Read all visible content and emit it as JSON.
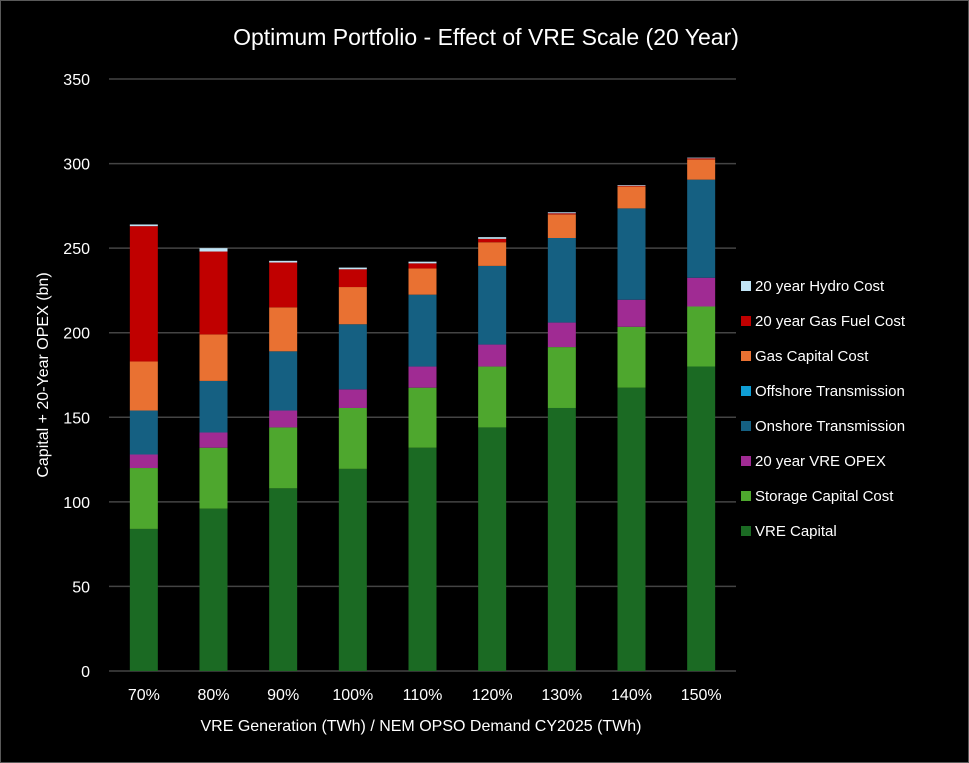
{
  "chart_data": {
    "type": "bar",
    "stacked": true,
    "title": "Optimum Portfolio - Effect of VRE Scale (20 Year)",
    "xlabel": "VRE Generation (TWh) / NEM OPSO Demand CY2025 (TWh)",
    "ylabel": "Capital + 20-Year OPEX (bn)",
    "ylim": [
      0,
      350
    ],
    "yticks": [
      0,
      50,
      100,
      150,
      200,
      250,
      300,
      350
    ],
    "grid": true,
    "legend_position": "right",
    "categories": [
      "70%",
      "80%",
      "90%",
      "100%",
      "110%",
      "120%",
      "130%",
      "140%",
      "150%"
    ],
    "series": [
      {
        "name": "VRE Capital",
        "color": "#1b6a23",
        "values": [
          84,
          96,
          108,
          119.5,
          132,
          144,
          155.5,
          167.5,
          180
        ]
      },
      {
        "name": "Storage Capital Cost",
        "color": "#4ea72e",
        "values": [
          36,
          36,
          36,
          36,
          35.5,
          36,
          36,
          36,
          35.5
        ]
      },
      {
        "name": "20 year VRE OPEX",
        "color": "#a02b93",
        "values": [
          8,
          9,
          10,
          11,
          12.5,
          13,
          14.5,
          16,
          17
        ]
      },
      {
        "name": "Onshore Transmission",
        "color": "#156082",
        "values": [
          26,
          30.5,
          35,
          38.5,
          42.5,
          46.5,
          50,
          54,
          58
        ]
      },
      {
        "name": "Offshore Transmission",
        "color": "#0f9ed5",
        "values": [
          0,
          0,
          0,
          0,
          0,
          0,
          0,
          0,
          0
        ]
      },
      {
        "name": "Gas Capital Cost",
        "color": "#e97132",
        "values": [
          29,
          27.5,
          26,
          22,
          15.5,
          14,
          14,
          13,
          12
        ]
      },
      {
        "name": "20 year Gas Fuel Cost",
        "color": "#c00000",
        "values": [
          80,
          49,
          26.5,
          10.5,
          3,
          2,
          0.6,
          0.4,
          0.6
        ]
      },
      {
        "name": "20 year Hydro Cost",
        "color": "#c0e4f5",
        "values": [
          1,
          2,
          1,
          1,
          1,
          1,
          0.6,
          0.4,
          0.4
        ]
      }
    ]
  }
}
